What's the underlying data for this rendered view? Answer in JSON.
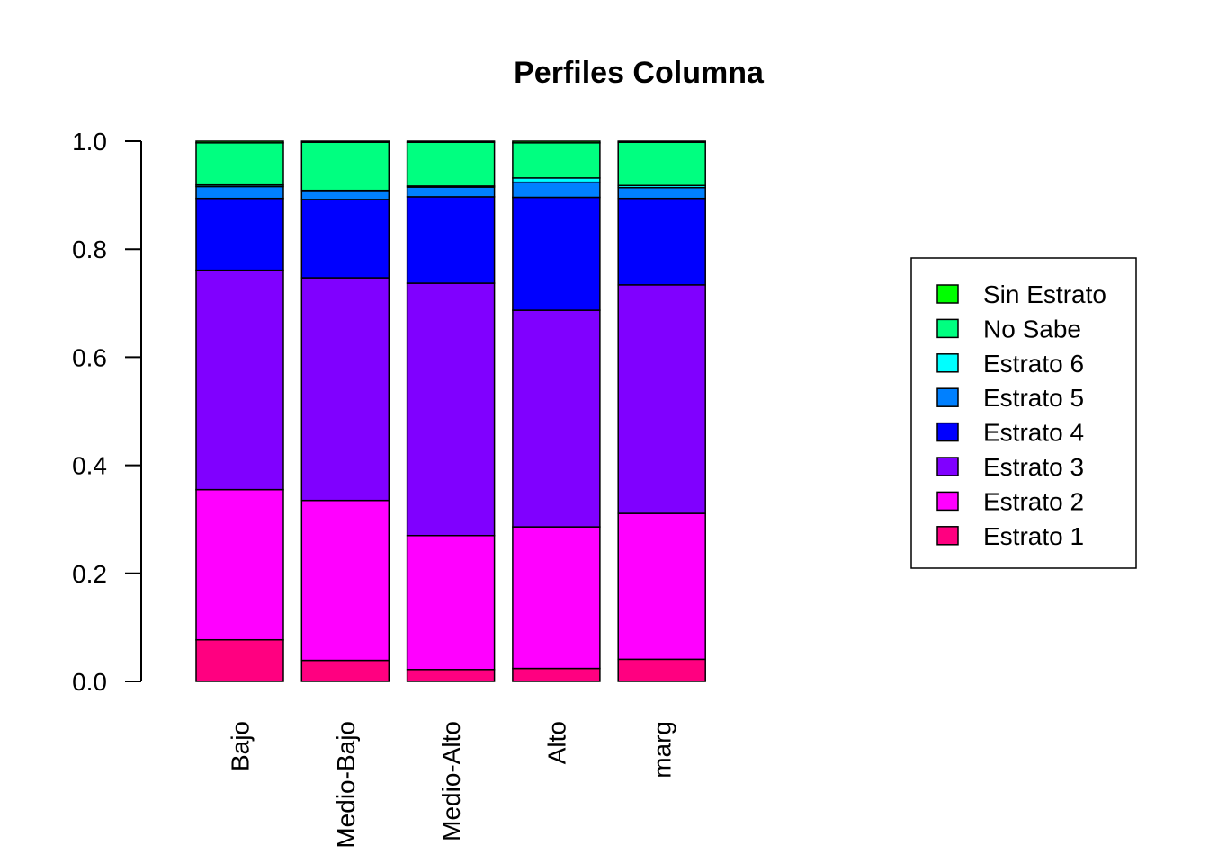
{
  "chart_data": {
    "type": "bar",
    "stacked": true,
    "title": "Perfiles Columna",
    "xlabel": "",
    "ylabel": "",
    "ylim": [
      0,
      1
    ],
    "yticks": [
      0.0,
      0.2,
      0.4,
      0.6,
      0.8,
      1.0
    ],
    "ytick_labels": [
      "0.0",
      "0.2",
      "0.4",
      "0.6",
      "0.8",
      "1.0"
    ],
    "categories": [
      "Bajo",
      "Medio-Bajo",
      "Medio-Alto",
      "Alto",
      "marg"
    ],
    "x_label_orientation": "vertical",
    "grid": false,
    "legend_position": "right",
    "series": [
      {
        "name": "Estrato 1",
        "color": "#FF0080",
        "values": [
          0.077,
          0.039,
          0.022,
          0.024,
          0.041
        ]
      },
      {
        "name": "Estrato 2",
        "color": "#FF00FF",
        "values": [
          0.278,
          0.296,
          0.248,
          0.262,
          0.27
        ]
      },
      {
        "name": "Estrato 3",
        "color": "#8000FF",
        "values": [
          0.406,
          0.412,
          0.467,
          0.401,
          0.423
        ]
      },
      {
        "name": "Estrato 4",
        "color": "#0000FF",
        "values": [
          0.133,
          0.145,
          0.16,
          0.209,
          0.16
        ]
      },
      {
        "name": "Estrato 5",
        "color": "#0080FF",
        "values": [
          0.022,
          0.015,
          0.018,
          0.028,
          0.02
        ]
      },
      {
        "name": "Estrato 6",
        "color": "#00FFFF",
        "values": [
          0.003,
          0.002,
          0.002,
          0.008,
          0.004
        ]
      },
      {
        "name": "No Sabe",
        "color": "#00FF80",
        "values": [
          0.078,
          0.089,
          0.081,
          0.065,
          0.08
        ]
      },
      {
        "name": "Sin Estrato",
        "color": "#00FF00",
        "values": [
          0.003,
          0.002,
          0.002,
          0.003,
          0.002
        ]
      }
    ]
  }
}
